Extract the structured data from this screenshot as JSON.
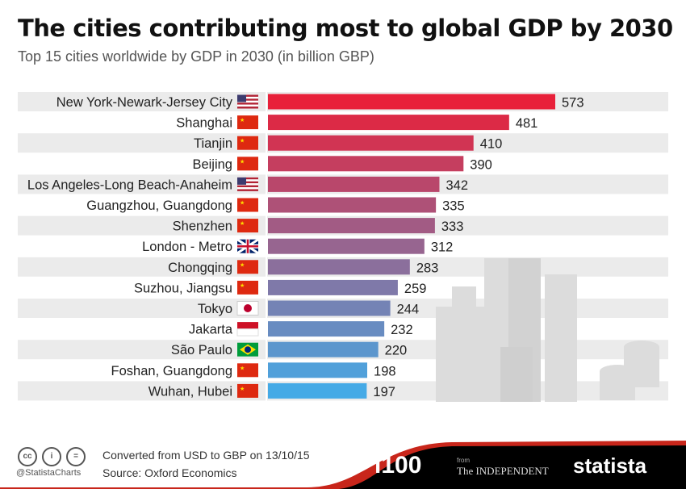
{
  "title": "The cities contributing most to global GDP by 2030",
  "subtitle": "Top 15 cities worldwide by GDP in 2030 (in billion GBP)",
  "chart_data": {
    "type": "bar",
    "orientation": "horizontal",
    "title": "The cities contributing most to global GDP by 2030",
    "subtitle": "Top 15 cities worldwide by GDP in 2030 (in billion GBP)",
    "categories": [
      "New York-Newark-Jersey City",
      "Shanghai",
      "Tianjin",
      "Beijing",
      "Los Angeles-Long Beach-Anaheim",
      "Guangzhou, Guangdong",
      "Shenzhen",
      "London - Metro",
      "Chongqing",
      "Suzhou, Jiangsu",
      "Tokyo",
      "Jakarta",
      "São Paulo",
      "Foshan, Guangdong",
      "Wuhan, Hubei"
    ],
    "flags": [
      "us",
      "cn",
      "cn",
      "cn",
      "us",
      "cn",
      "cn",
      "uk",
      "cn",
      "cn",
      "jp",
      "id",
      "br",
      "cn",
      "cn"
    ],
    "values": [
      573,
      481,
      410,
      390,
      342,
      335,
      333,
      312,
      283,
      259,
      244,
      232,
      220,
      198,
      197
    ],
    "xlim": [
      0,
      573
    ],
    "colors": {
      "start": "#e8203a",
      "end": "#45aae6"
    }
  },
  "footer": {
    "note": "Converted from USD to GBP on 13/10/15",
    "source": "Source: Oxford Economics",
    "handle": "@StatistaCharts",
    "i100": "i100",
    "from": "from",
    "independent": "The INDEPENDENT",
    "statista": "statista"
  }
}
